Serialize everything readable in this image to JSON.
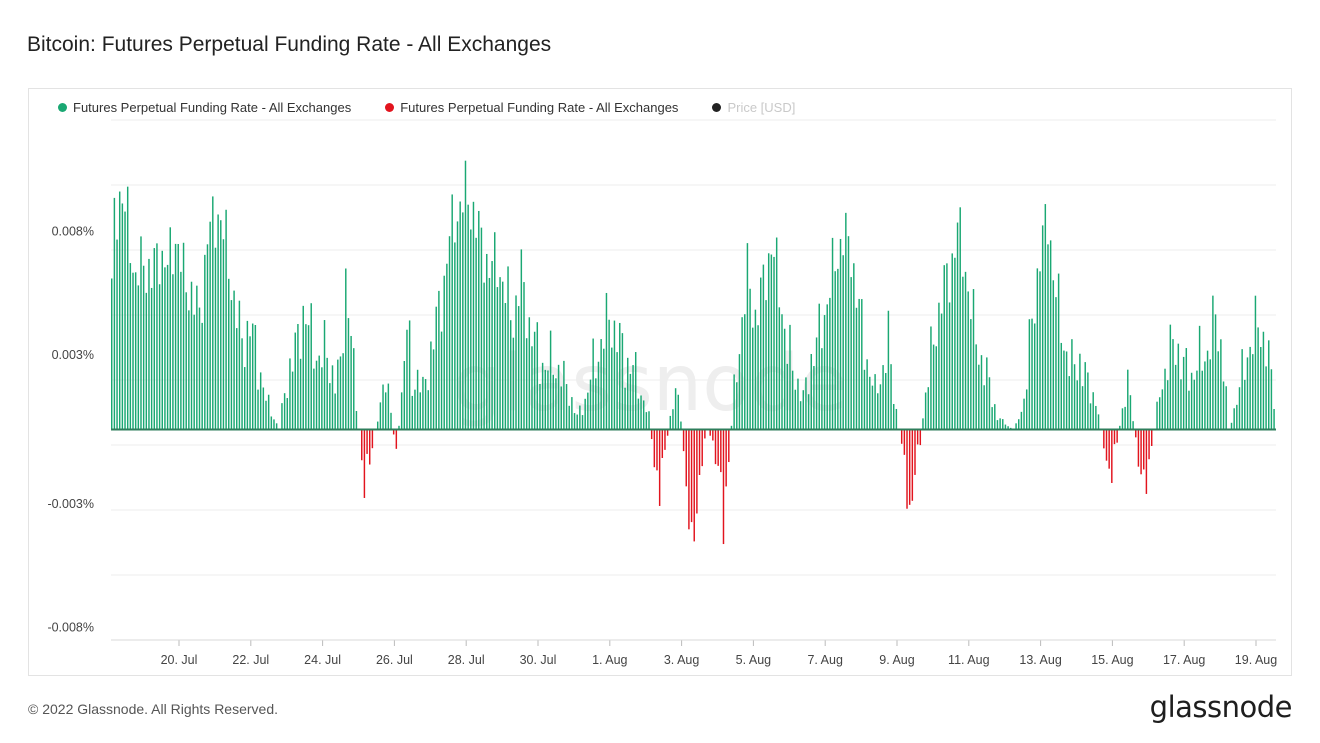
{
  "title": "Bitcoin: Futures Perpetual Funding Rate - All Exchanges",
  "legend": [
    {
      "label": "Futures Perpetual Funding Rate - All Exchanges",
      "color": "#1aa873"
    },
    {
      "label": "Futures Perpetual Funding Rate - All Exchanges",
      "color": "#e2141e"
    },
    {
      "label": "Price [USD]",
      "color": "#222222",
      "muted": true
    }
  ],
  "footer": "© 2022 Glassnode. All Rights Reserved.",
  "logo": "glassnode",
  "watermark": "glassnode",
  "chart_data": {
    "type": "bar",
    "x_tick_labels": [
      "20. Jul",
      "22. Jul",
      "24. Jul",
      "26. Jul",
      "28. Jul",
      "30. Jul",
      "1. Aug",
      "3. Aug",
      "5. Aug",
      "7. Aug",
      "9. Aug",
      "11. Aug",
      "13. Aug",
      "15. Aug",
      "17. Aug",
      "19. Aug"
    ],
    "y_tick_labels": [
      "0.008%",
      "0.003%",
      "-0.003%",
      "-0.008%"
    ],
    "y_ticks": [
      0.008,
      0.003,
      -0.003,
      -0.008
    ],
    "ylim": [
      -0.0085,
      0.0125
    ],
    "unit": "%",
    "positive_color": "#1aa873",
    "negative_color": "#e2141e",
    "series_positive_name": "Futures Perpetual Funding Rate - All Exchanges",
    "series_negative_name": "Futures Perpetual Funding Rate - All Exchanges",
    "anchors": [
      [
        0,
        0.0055
      ],
      [
        1,
        0.0085
      ],
      [
        3,
        0.0095
      ],
      [
        6,
        0.0085
      ],
      [
        9,
        0.006
      ],
      [
        12,
        0.0068
      ],
      [
        15,
        0.0062
      ],
      [
        18,
        0.0072
      ],
      [
        21,
        0.0065
      ],
      [
        24,
        0.0078
      ],
      [
        27,
        0.0062
      ],
      [
        30,
        0.0055
      ],
      [
        33,
        0.0045
      ],
      [
        36,
        0.0078
      ],
      [
        40,
        0.0088
      ],
      [
        43,
        0.0075
      ],
      [
        46,
        0.0052
      ],
      [
        49,
        0.0035
      ],
      [
        52,
        0.0042
      ],
      [
        55,
        0.0028
      ],
      [
        58,
        0.0012
      ],
      [
        61,
        0.0005
      ],
      [
        63,
        0.0
      ],
      [
        65,
        0.0015
      ],
      [
        67,
        0.0025
      ],
      [
        70,
        0.0035
      ],
      [
        72,
        0.0048
      ],
      [
        75,
        0.0038
      ],
      [
        78,
        0.0028
      ],
      [
        81,
        0.0032
      ],
      [
        84,
        0.0018
      ],
      [
        86,
        0.0025
      ],
      [
        88,
        0.0062
      ],
      [
        90,
        0.0035
      ],
      [
        92,
        0.0012
      ],
      [
        95,
        -0.0025
      ],
      [
        97,
        -0.0012
      ],
      [
        99,
        0.0
      ],
      [
        101,
        0.0008
      ],
      [
        103,
        0.0025
      ],
      [
        105,
        0.0008
      ],
      [
        107,
        -0.0012
      ],
      [
        109,
        0.0015
      ],
      [
        111,
        0.0042
      ],
      [
        113,
        0.0018
      ],
      [
        115,
        0.0022
      ],
      [
        117,
        0.0015
      ],
      [
        119,
        0.0025
      ],
      [
        121,
        0.0038
      ],
      [
        124,
        0.0052
      ],
      [
        127,
        0.0078
      ],
      [
        130,
        0.0088
      ],
      [
        133,
        0.0095
      ],
      [
        136,
        0.0088
      ],
      [
        139,
        0.0075
      ],
      [
        142,
        0.0065
      ],
      [
        145,
        0.0068
      ],
      [
        148,
        0.0055
      ],
      [
        151,
        0.0045
      ],
      [
        154,
        0.0062
      ],
      [
        157,
        0.0042
      ],
      [
        160,
        0.0032
      ],
      [
        163,
        0.0025
      ],
      [
        166,
        0.0028
      ],
      [
        169,
        0.0022
      ],
      [
        172,
        0.0015
      ],
      [
        175,
        0.0005
      ],
      [
        178,
        0.0012
      ],
      [
        181,
        0.0025
      ],
      [
        184,
        0.0035
      ],
      [
        187,
        0.0045
      ],
      [
        190,
        0.0038
      ],
      [
        193,
        0.0028
      ],
      [
        196,
        0.0025
      ],
      [
        199,
        0.0015
      ],
      [
        202,
        0.0005
      ],
      [
        204,
        -0.0012
      ],
      [
        206,
        -0.0025
      ],
      [
        208,
        -0.001
      ],
      [
        210,
        0.0005
      ],
      [
        212,
        0.0015
      ],
      [
        214,
        0.0005
      ],
      [
        216,
        -0.0022
      ],
      [
        218,
        -0.0052
      ],
      [
        220,
        -0.0028
      ],
      [
        222,
        -0.0012
      ],
      [
        224,
        0.0
      ],
      [
        226,
        -0.0005
      ],
      [
        228,
        -0.0018
      ],
      [
        230,
        -0.0035
      ],
      [
        232,
        -0.0012
      ],
      [
        234,
        0.0015
      ],
      [
        236,
        0.0035
      ],
      [
        239,
        0.0062
      ],
      [
        242,
        0.0045
      ],
      [
        245,
        0.0058
      ],
      [
        248,
        0.0075
      ],
      [
        251,
        0.0058
      ],
      [
        254,
        0.0032
      ],
      [
        257,
        0.0022
      ],
      [
        260,
        0.0012
      ],
      [
        263,
        0.0028
      ],
      [
        266,
        0.0038
      ],
      [
        269,
        0.0052
      ],
      [
        272,
        0.0068
      ],
      [
        275,
        0.0078
      ],
      [
        278,
        0.0072
      ],
      [
        281,
        0.0048
      ],
      [
        284,
        0.0028
      ],
      [
        287,
        0.0015
      ],
      [
        290,
        0.0025
      ],
      [
        292,
        0.0035
      ],
      [
        294,
        0.0015
      ],
      [
        296,
        0.0
      ],
      [
        298,
        -0.0015
      ],
      [
        300,
        -0.0032
      ],
      [
        302,
        -0.0018
      ],
      [
        304,
        -0.0005
      ],
      [
        306,
        0.0015
      ],
      [
        309,
        0.0035
      ],
      [
        312,
        0.0055
      ],
      [
        315,
        0.0062
      ],
      [
        318,
        0.0082
      ],
      [
        321,
        0.0065
      ],
      [
        324,
        0.0042
      ],
      [
        327,
        0.0028
      ],
      [
        330,
        0.0018
      ],
      [
        333,
        0.0005
      ],
      [
        336,
        0.0002
      ],
      [
        339,
        0.0
      ],
      [
        341,
        0.0005
      ],
      [
        343,
        0.0012
      ],
      [
        346,
        0.0042
      ],
      [
        349,
        0.0072
      ],
      [
        352,
        0.0085
      ],
      [
        355,
        0.0055
      ],
      [
        358,
        0.0035
      ],
      [
        361,
        0.0025
      ],
      [
        364,
        0.0028
      ],
      [
        367,
        0.0018
      ],
      [
        370,
        0.0012
      ],
      [
        372,
        0.0
      ],
      [
        374,
        -0.0012
      ],
      [
        376,
        -0.0018
      ],
      [
        378,
        -0.0005
      ],
      [
        380,
        0.0008
      ],
      [
        382,
        0.0018
      ],
      [
        384,
        0.0005
      ],
      [
        386,
        -0.0012
      ],
      [
        388,
        -0.0028
      ],
      [
        390,
        -0.0012
      ],
      [
        392,
        0.0
      ],
      [
        394,
        0.0015
      ],
      [
        397,
        0.0028
      ],
      [
        400,
        0.0035
      ],
      [
        403,
        0.0025
      ],
      [
        406,
        0.0022
      ],
      [
        409,
        0.0028
      ],
      [
        412,
        0.0032
      ],
      [
        415,
        0.0045
      ],
      [
        418,
        0.0028
      ],
      [
        420,
        0.0
      ],
      [
        422,
        0.0008
      ],
      [
        425,
        0.0022
      ],
      [
        428,
        0.0035
      ],
      [
        431,
        0.0042
      ],
      [
        434,
        0.0035
      ],
      [
        437,
        0.0012
      ]
    ]
  }
}
